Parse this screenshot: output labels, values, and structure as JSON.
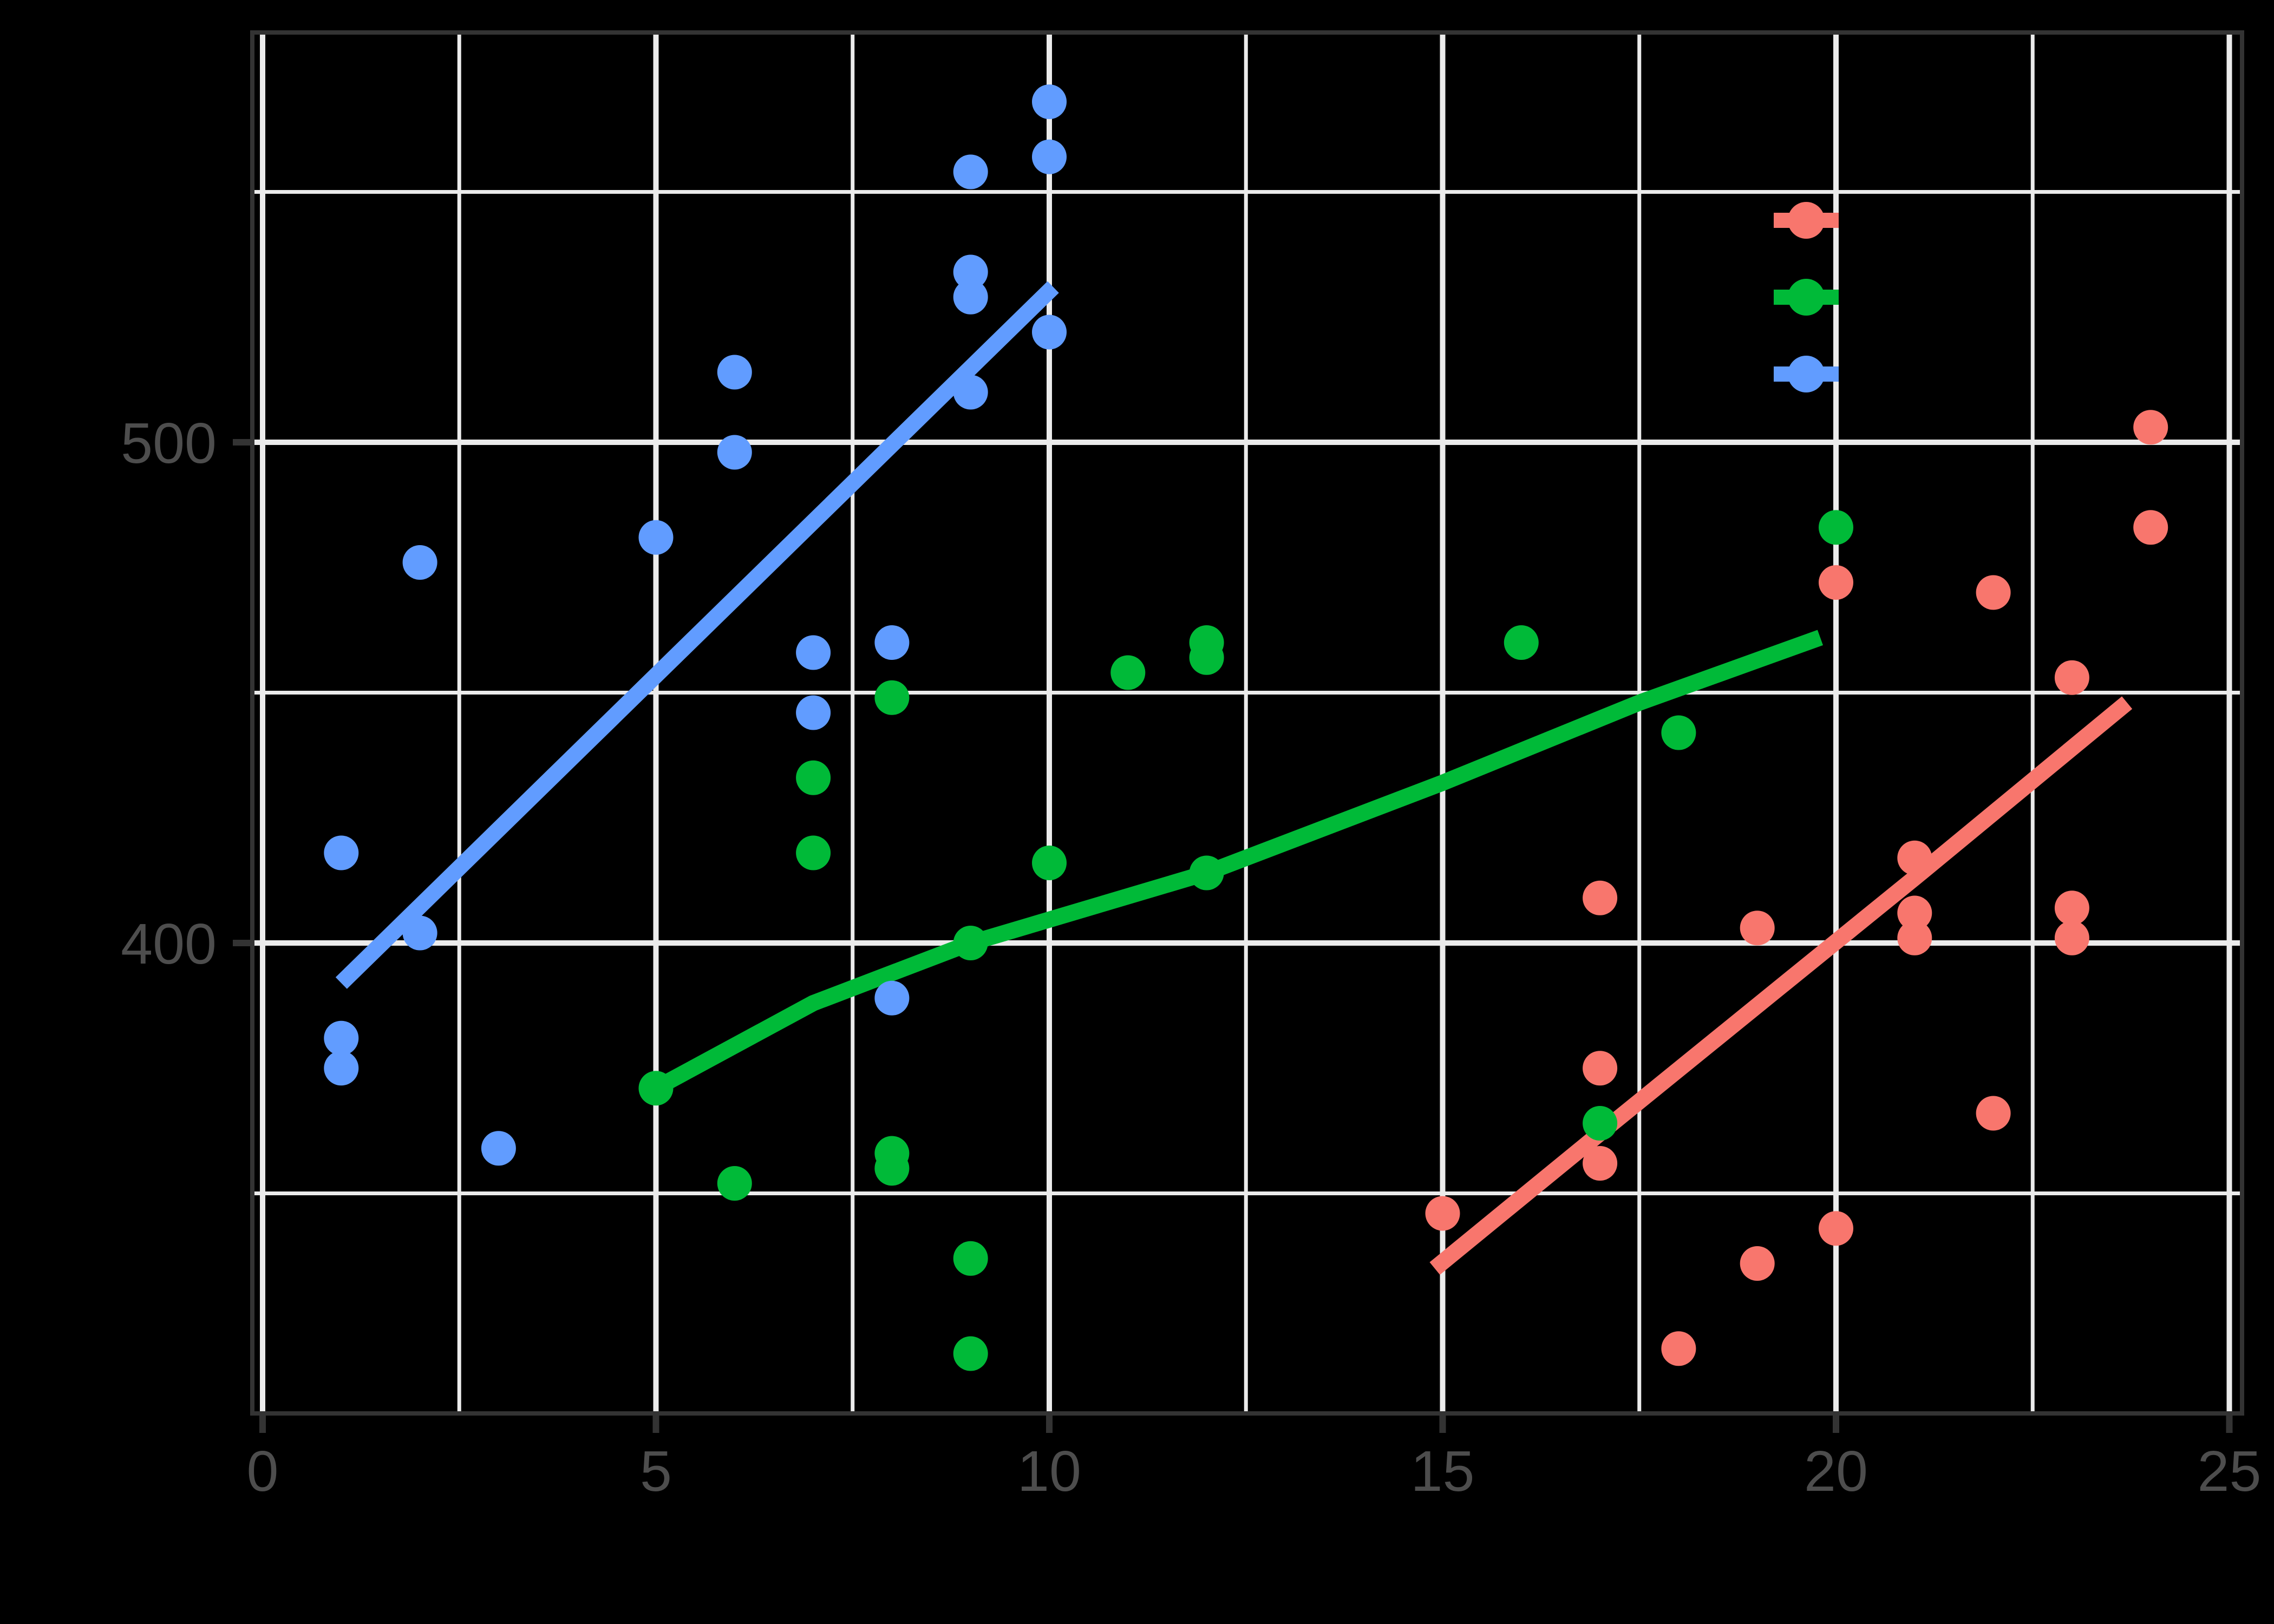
{
  "chart_data": {
    "type": "scatter",
    "background_color": "#000000",
    "grid": true,
    "panel": {
      "border_color": "#333333",
      "grid_major_color": "#EBEBEB",
      "grid_minor_color": "#EBEBEB",
      "tick_color": "#333333",
      "tick_label_color": "#4D4D4D"
    },
    "x_axis": {
      "tick_labels": [
        "0",
        "5",
        "10",
        "15",
        "20",
        "25"
      ],
      "tick_values": [
        0,
        5,
        10,
        15,
        20,
        25
      ],
      "minor_gridlines": [
        2.5,
        7.5,
        12.5,
        17.5,
        22.5
      ],
      "range": [
        -0.15,
        25.15
      ]
    },
    "y_axis": {
      "tick_labels": [
        "400",
        "500"
      ],
      "tick_values": [
        400,
        500
      ],
      "minor_gridlines": [
        350,
        450,
        550
      ],
      "range": [
        306,
        582
      ]
    },
    "series": [
      {
        "name": "series-red",
        "color": "#F8766D",
        "points": [
          [
            15,
            346
          ],
          [
            17,
            409
          ],
          [
            17,
            375
          ],
          [
            17,
            356
          ],
          [
            18,
            319
          ],
          [
            19,
            403
          ],
          [
            19,
            336
          ],
          [
            20,
            472
          ],
          [
            20,
            343
          ],
          [
            21,
            417
          ],
          [
            21,
            406
          ],
          [
            21,
            401
          ],
          [
            22,
            470
          ],
          [
            22,
            366
          ],
          [
            23,
            453
          ],
          [
            23,
            407
          ],
          [
            23,
            401
          ],
          [
            24,
            503
          ],
          [
            24,
            483
          ]
        ],
        "trend": [
          [
            14.9,
            335
          ],
          [
            17,
            362
          ],
          [
            19,
            387.5
          ],
          [
            21,
            413
          ],
          [
            23.7,
            448
          ]
        ]
      },
      {
        "name": "series-green",
        "color": "#00BA38",
        "points": [
          [
            5,
            371
          ],
          [
            6,
            352
          ],
          [
            7,
            433
          ],
          [
            7,
            418
          ],
          [
            8,
            449
          ],
          [
            8,
            358
          ],
          [
            8,
            355
          ],
          [
            9,
            400
          ],
          [
            9,
            337
          ],
          [
            9,
            318
          ],
          [
            10,
            416
          ],
          [
            11,
            454
          ],
          [
            12,
            460
          ],
          [
            12,
            457
          ],
          [
            12,
            414
          ],
          [
            16,
            460
          ],
          [
            17,
            364
          ],
          [
            18,
            442
          ],
          [
            20,
            483
          ]
        ],
        "trend": [
          [
            5,
            371
          ],
          [
            7,
            388
          ],
          [
            9,
            400
          ],
          [
            12,
            414
          ],
          [
            15,
            432
          ],
          [
            17.5,
            448
          ],
          [
            19.8,
            461
          ]
        ]
      },
      {
        "name": "series-blue",
        "color": "#619CFF",
        "points": [
          [
            1,
            418
          ],
          [
            1,
            381
          ],
          [
            1,
            375
          ],
          [
            2,
            476
          ],
          [
            2,
            402
          ],
          [
            3,
            359
          ],
          [
            5,
            481
          ],
          [
            6,
            514
          ],
          [
            6,
            498
          ],
          [
            7,
            458
          ],
          [
            7,
            446
          ],
          [
            8,
            460
          ],
          [
            8,
            389
          ],
          [
            9,
            554
          ],
          [
            9,
            534
          ],
          [
            9,
            529
          ],
          [
            9,
            510
          ],
          [
            10,
            568
          ],
          [
            10,
            557
          ],
          [
            10,
            522
          ]
        ],
        "trend": [
          [
            1,
            392
          ],
          [
            10.05,
            531
          ]
        ]
      }
    ],
    "legend": {
      "position": "inside-top-right",
      "entries": [
        {
          "key": "legend-key-red",
          "color": "#F8766D"
        },
        {
          "key": "legend-key-green",
          "color": "#00BA38"
        },
        {
          "key": "legend-key-blue",
          "color": "#619CFF"
        }
      ]
    }
  }
}
